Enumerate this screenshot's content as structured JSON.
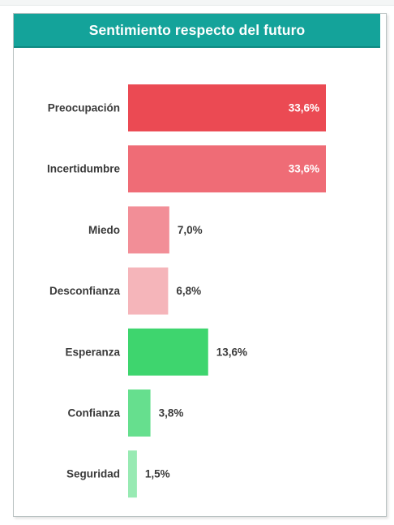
{
  "chart_data": {
    "type": "bar",
    "orientation": "horizontal",
    "title": "Sentimiento respecto del futuro",
    "categories": [
      "Preocupación",
      "Incertidumbre",
      "Miedo",
      "Desconfianza",
      "Esperanza",
      "Confianza",
      "Seguridad"
    ],
    "values": [
      33.6,
      33.6,
      7.0,
      6.8,
      13.6,
      3.8,
      1.5
    ],
    "value_labels": [
      "33,6%",
      "33,6%",
      "7,0%",
      "6,8%",
      "13,6%",
      "3,8%",
      "1,5%"
    ],
    "colors": [
      "#eb4a53",
      "#ef6c76",
      "#f28e97",
      "#f5b5ba",
      "#3ed56e",
      "#66df8e",
      "#98eab3"
    ],
    "xlim": [
      0,
      33.6
    ],
    "grid": false,
    "legend": "none"
  }
}
